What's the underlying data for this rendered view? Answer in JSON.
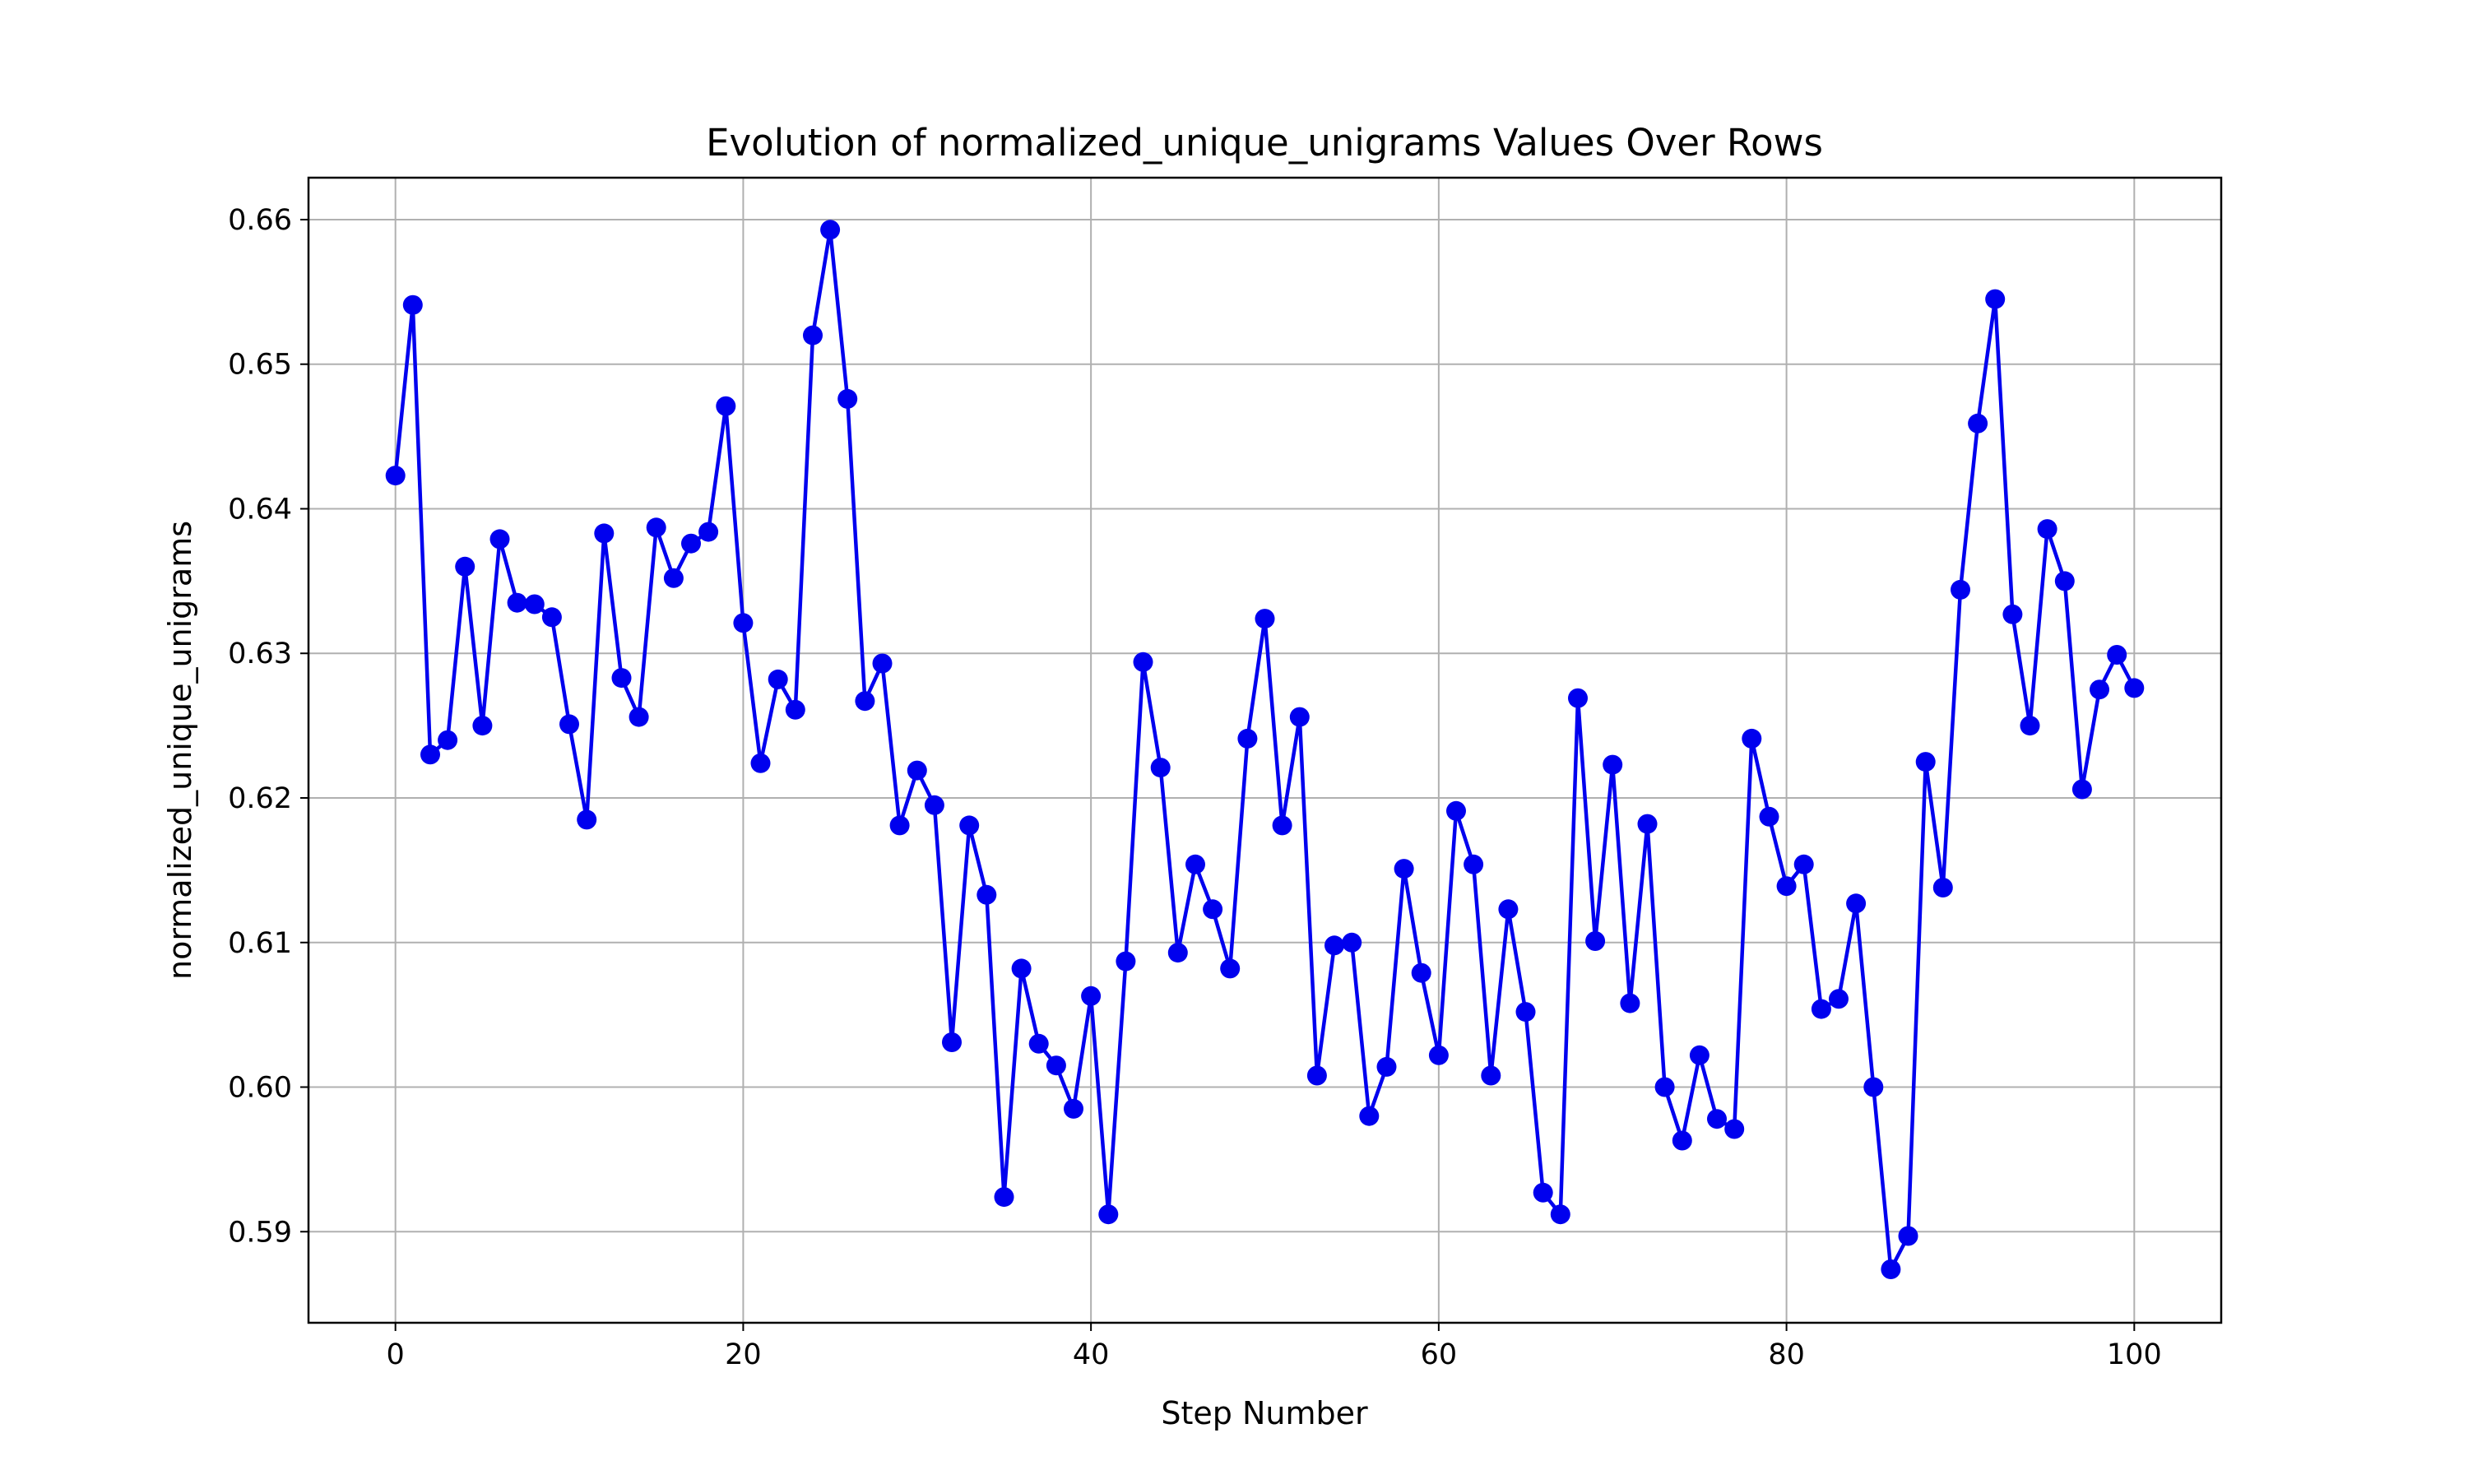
{
  "chart_data": {
    "type": "line",
    "title": "Evolution of normalized_unique_unigrams Values Over Rows",
    "xlabel": "Step Number",
    "ylabel": "normalized_unique_unigrams",
    "xlim": [
      -5,
      105
    ],
    "ylim": [
      0.5837,
      0.6629
    ],
    "grid": true,
    "xticks": [
      0,
      20,
      40,
      60,
      80,
      100
    ],
    "xtick_labels": [
      "0",
      "20",
      "40",
      "60",
      "80",
      "100"
    ],
    "yticks": [
      0.59,
      0.6,
      0.61,
      0.62,
      0.63,
      0.64,
      0.65,
      0.66
    ],
    "ytick_labels": [
      "0.59",
      "0.60",
      "0.61",
      "0.62",
      "0.63",
      "0.64",
      "0.65",
      "0.66"
    ],
    "line_color": "#0000ee",
    "x": [
      0,
      1,
      2,
      3,
      4,
      5,
      6,
      7,
      8,
      9,
      10,
      11,
      12,
      13,
      14,
      15,
      16,
      17,
      18,
      19,
      20,
      21,
      22,
      23,
      24,
      25,
      26,
      27,
      28,
      29,
      30,
      31,
      32,
      33,
      34,
      35,
      36,
      37,
      38,
      39,
      40,
      41,
      42,
      43,
      44,
      45,
      46,
      47,
      48,
      49,
      50,
      51,
      52,
      53,
      54,
      55,
      56,
      57,
      58,
      59,
      60,
      61,
      62,
      63,
      64,
      65,
      66,
      67,
      68,
      69,
      70,
      71,
      72,
      73,
      74,
      75,
      76,
      77,
      78,
      79,
      80,
      81,
      82,
      83,
      84,
      85,
      86,
      87,
      88,
      89,
      90,
      91,
      92,
      93,
      94,
      95,
      96,
      97,
      98,
      99,
      100
    ],
    "series": [
      {
        "values": [
          0.6423,
          0.6541,
          0.623,
          0.624,
          0.636,
          0.625,
          0.6379,
          0.6335,
          0.6334,
          0.6325,
          0.6251,
          0.6185,
          0.6383,
          0.6283,
          0.6256,
          0.6387,
          0.6352,
          0.6376,
          0.6384,
          0.6471,
          0.6321,
          0.6224,
          0.6282,
          0.6261,
          0.652,
          0.6593,
          0.6476,
          0.6267,
          0.6293,
          0.6181,
          0.6219,
          0.6195,
          0.6031,
          0.6181,
          0.6133,
          0.5924,
          0.6082,
          0.603,
          0.6015,
          0.5985,
          0.6063,
          0.5912,
          0.6087,
          0.6294,
          0.6221,
          0.6093,
          0.6154,
          0.6123,
          0.6082,
          0.6241,
          0.6324,
          0.6181,
          0.6256,
          0.6008,
          0.6098,
          0.61,
          0.598,
          0.6014,
          0.6151,
          0.6079,
          0.6022,
          0.6191,
          0.6154,
          0.6008,
          0.6123,
          0.6052,
          0.5927,
          0.5912,
          0.6269,
          0.6101,
          0.6223,
          0.6058,
          0.6182,
          0.6,
          0.5963,
          0.6022,
          0.5978,
          0.5971,
          0.6241,
          0.6187,
          0.6139,
          0.6154,
          0.6054,
          0.6061,
          0.6127,
          0.6,
          0.5874,
          0.5897,
          0.6225,
          0.6138,
          0.6344,
          0.6459,
          0.6545,
          0.6327,
          0.625,
          0.6386,
          0.635,
          0.6206,
          0.6275,
          0.6299,
          0.6276
        ]
      }
    ]
  }
}
